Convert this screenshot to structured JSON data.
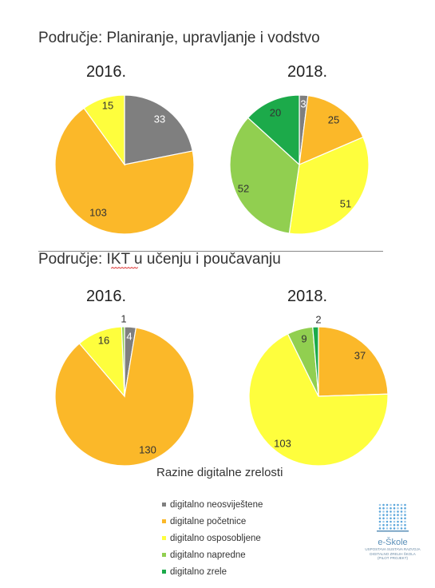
{
  "sections": [
    {
      "title": "Područje: Planiranje, upravljanje i vodstvo",
      "years": [
        "2016.",
        "2018."
      ]
    },
    {
      "title": "Područje: IKT u učenju i poučavanju",
      "years": [
        "2016.",
        "2018."
      ]
    }
  ],
  "colors": {
    "digitalno neosviještene": "#7f7f7f",
    "digitalne početnice": "#fbb829",
    "digitalno osposobljene": "#fefe3d",
    "digitalno napredne": "#91cf50",
    "digitalno zrele": "#1caa4a"
  },
  "chart_data": [
    {
      "type": "pie",
      "title": "2016.",
      "labels": [
        "digitalno neosviještene",
        "digitalne početnice",
        "digitalno osposobljene"
      ],
      "values": [
        33,
        103,
        15
      ]
    },
    {
      "type": "pie",
      "title": "2018.",
      "labels": [
        "digitalno neosviještene",
        "digitalne početnice",
        "digitalno osposobljene",
        "digitalno napredne",
        "digitalno zrele"
      ],
      "values": [
        3,
        25,
        51,
        52,
        20
      ]
    },
    {
      "type": "pie",
      "title": "2016.",
      "labels": [
        "digitalno neosviještene",
        "digitalne početnice",
        "digitalno osposobljene",
        "digitalno napredne"
      ],
      "values": [
        4,
        130,
        16,
        1
      ]
    },
    {
      "type": "pie",
      "title": "2018.",
      "labels": [
        "digitalne početnice",
        "digitalno osposobljene",
        "digitalno napredne",
        "digitalno zrele"
      ],
      "values": [
        37,
        103,
        9,
        2
      ]
    }
  ],
  "legend": {
    "title": "Razine digitalne zrelosti",
    "placement": "bottom",
    "items": [
      "digitalno neosviještene",
      "digitalne početnice",
      "digitalno osposobljene",
      "digitalno napredne",
      "digitalno zrele"
    ]
  },
  "logo": {
    "name": "e-Škole",
    "subtitle": "USPOSTAVA SUSTAVA RAZVOJA DIGITALNO ZRELIH ŠKOLA",
    "tag": "(PILOT PROJEKT)"
  }
}
